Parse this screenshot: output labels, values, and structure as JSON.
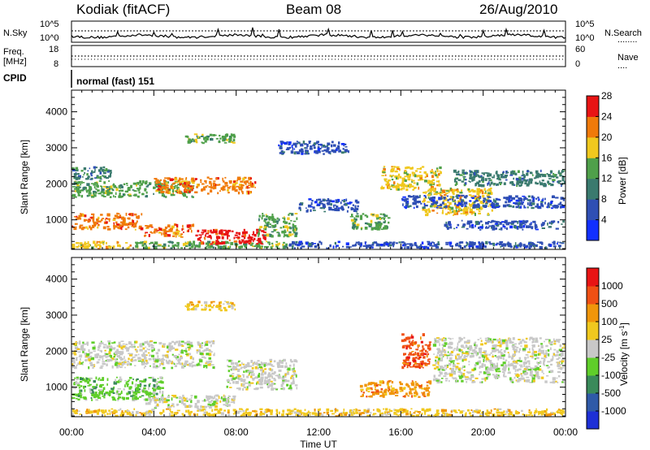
{
  "header": {
    "station": "Kodiak (fitACF)",
    "beam": "Beam 08",
    "date": "26/Aug/2010"
  },
  "summary_panel": {
    "nsky_label": "N.Sky",
    "nsearch_label": "N.Search",
    "nsearch_key": "........",
    "noise_ticks": [
      "10^5",
      "10^0"
    ],
    "freq_label_line1": "Freq.",
    "freq_label_line2": "[MHz]",
    "freq_ticks": [
      "18",
      "8"
    ],
    "nave_label": "Nave",
    "nave_key": "....",
    "nave_ticks": [
      "60",
      "0"
    ],
    "cpid_label": "CPID",
    "cpid_value": "normal (fast) 151"
  },
  "x_axis": {
    "label": "Time UT",
    "ticks": [
      "00:00",
      "04:00",
      "08:00",
      "12:00",
      "16:00",
      "20:00",
      "00:00"
    ]
  },
  "chart_data": [
    {
      "type": "heatmap",
      "name": "power",
      "ylabel": "Slant Range [km]",
      "y_ticks": [
        1000,
        2000,
        3000,
        4000
      ],
      "ylim": [
        180,
        4600
      ],
      "x_hours_range": [
        0,
        24
      ],
      "colorbar": {
        "label": "Power [dB]",
        "ticks": [
          "4",
          "8",
          "12",
          "16",
          "20",
          "24",
          "28"
        ],
        "colors": [
          "#1230ff",
          "#2f4fb4",
          "#3a7a6e",
          "#4fa04a",
          "#f0c81e",
          "#f07a0a",
          "#e81414"
        ]
      },
      "echo_regions": [
        {
          "t": [
            0.0,
            3.0
          ],
          "r": [
            180,
            420
          ],
          "level": 4
        },
        {
          "t": [
            3.0,
            10.5
          ],
          "r": [
            180,
            420
          ],
          "level": 3
        },
        {
          "t": [
            10.5,
            24.0
          ],
          "r": [
            180,
            420
          ],
          "level": 1
        },
        {
          "t": [
            0.0,
            3.5
          ],
          "r": [
            700,
            1200
          ],
          "level": 5
        },
        {
          "t": [
            3.5,
            6.0
          ],
          "r": [
            500,
            900
          ],
          "level": 5
        },
        {
          "t": [
            6.0,
            9.5
          ],
          "r": [
            300,
            750
          ],
          "level": 6
        },
        {
          "t": [
            0.0,
            6.0
          ],
          "r": [
            1600,
            2100
          ],
          "level": 3
        },
        {
          "t": [
            4.0,
            9.0
          ],
          "r": [
            1700,
            2200
          ],
          "level": 5
        },
        {
          "t": [
            0.0,
            2.0
          ],
          "r": [
            2100,
            2500
          ],
          "level": 2
        },
        {
          "t": [
            5.5,
            8.0
          ],
          "r": [
            3100,
            3400
          ],
          "level": 3
        },
        {
          "t": [
            9.0,
            11.0
          ],
          "r": [
            500,
            1200
          ],
          "level": 3
        },
        {
          "t": [
            11.0,
            14.0
          ],
          "r": [
            1200,
            1600
          ],
          "level": 1
        },
        {
          "t": [
            13.5,
            15.5
          ],
          "r": [
            700,
            1200
          ],
          "level": 3
        },
        {
          "t": [
            15.0,
            18.0
          ],
          "r": [
            1800,
            2500
          ],
          "level": 4
        },
        {
          "t": [
            17.0,
            20.5
          ],
          "r": [
            1100,
            1900
          ],
          "level": 4
        },
        {
          "t": [
            16.0,
            24.0
          ],
          "r": [
            1300,
            1700
          ],
          "level": 1
        },
        {
          "t": [
            18.5,
            24.0
          ],
          "r": [
            1900,
            2400
          ],
          "level": 2
        },
        {
          "t": [
            10.0,
            13.5
          ],
          "r": [
            2800,
            3200
          ],
          "level": 1
        },
        {
          "t": [
            18.0,
            24.0
          ],
          "r": [
            700,
            1000
          ],
          "level": 1
        }
      ]
    },
    {
      "type": "heatmap",
      "name": "velocity",
      "ylabel": "Slant Range [km]",
      "y_ticks": [
        1000,
        2000,
        3000,
        4000
      ],
      "ylim": [
        180,
        4600
      ],
      "x_hours_range": [
        0,
        24
      ],
      "colorbar": {
        "label": "Velocity [m s^-1]",
        "ticks": [
          "1000",
          "500",
          "100",
          "25",
          "-25",
          "-100",
          "-500",
          "-1000"
        ],
        "colors": [
          "#1e30d6",
          "#2f5aa8",
          "#3a8a5a",
          "#5fce2a",
          "#c8c8c8",
          "#f0c81e",
          "#f0960a",
          "#f05014",
          "#e81414"
        ]
      },
      "echo_regions": [
        {
          "t": [
            0.0,
            24.0
          ],
          "r": [
            180,
            420
          ],
          "level": 5
        },
        {
          "t": [
            0.0,
            4.5
          ],
          "r": [
            600,
            1300
          ],
          "level": 3
        },
        {
          "t": [
            3.5,
            8.0
          ],
          "r": [
            400,
            800
          ],
          "level": 4
        },
        {
          "t": [
            0.0,
            7.0
          ],
          "r": [
            1500,
            2300
          ],
          "level": 4
        },
        {
          "t": [
            7.5,
            11.0
          ],
          "r": [
            900,
            1800
          ],
          "level": 4
        },
        {
          "t": [
            5.5,
            8.0
          ],
          "r": [
            3100,
            3400
          ],
          "level": 5
        },
        {
          "t": [
            14.0,
            17.5
          ],
          "r": [
            700,
            1200
          ],
          "level": 6
        },
        {
          "t": [
            16.0,
            17.5
          ],
          "r": [
            1500,
            2500
          ],
          "level": 7
        },
        {
          "t": [
            17.5,
            24.0
          ],
          "r": [
            1100,
            2400
          ],
          "level": 4
        }
      ]
    }
  ]
}
